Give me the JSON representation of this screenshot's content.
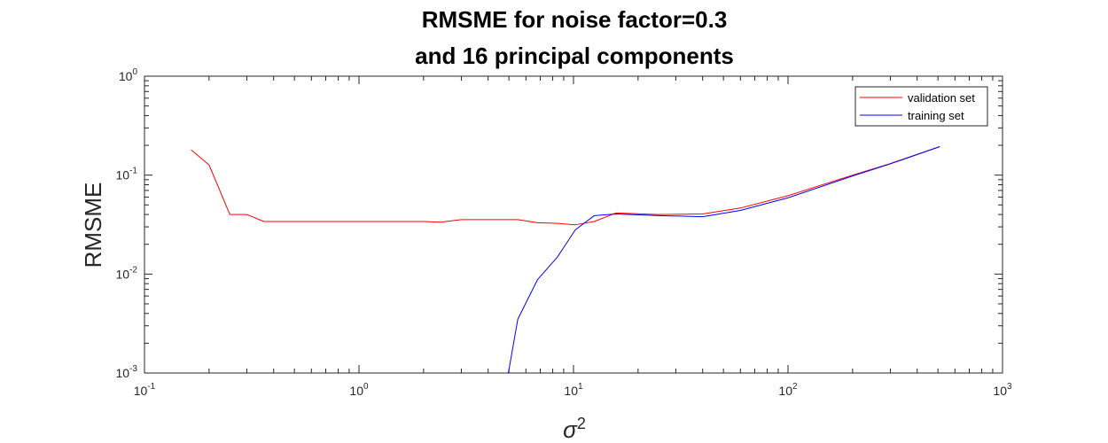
{
  "chart_data": {
    "type": "line",
    "title": "RMSME for noise factor=0.3",
    "subtitle": "and 16 principal components",
    "xlabel": "σ",
    "xlabel_sup": "2",
    "ylabel": "RMSME",
    "xscale": "log",
    "yscale": "log",
    "xlim": [
      0.1,
      1000
    ],
    "ylim": [
      0.001,
      1
    ],
    "x_ticks": [
      {
        "base": "10",
        "exp": "-1",
        "value": 0.1
      },
      {
        "base": "10",
        "exp": "0",
        "value": 1
      },
      {
        "base": "10",
        "exp": "1",
        "value": 10
      },
      {
        "base": "10",
        "exp": "2",
        "value": 100
      },
      {
        "base": "10",
        "exp": "3",
        "value": 1000
      }
    ],
    "y_ticks": [
      {
        "base": "10",
        "exp": "0",
        "value": 1
      },
      {
        "base": "10",
        "exp": "-1",
        "value": 0.1
      },
      {
        "base": "10",
        "exp": "-2",
        "value": 0.01
      },
      {
        "base": "10",
        "exp": "-3",
        "value": 0.001
      }
    ],
    "grid": false,
    "legend_position": "top-right",
    "series": [
      {
        "name": "validation set",
        "color": "#ff0000",
        "points": [
          [
            0.165,
            0.18
          ],
          [
            0.2,
            0.127
          ],
          [
            0.25,
            0.04
          ],
          [
            0.3,
            0.04
          ],
          [
            0.36,
            0.034
          ],
          [
            0.5,
            0.034
          ],
          [
            1.0,
            0.034
          ],
          [
            2.0,
            0.034
          ],
          [
            2.4,
            0.0335
          ],
          [
            3.0,
            0.0355
          ],
          [
            5.5,
            0.0355
          ],
          [
            6.8,
            0.033
          ],
          [
            8.5,
            0.0325
          ],
          [
            10.2,
            0.0315
          ],
          [
            12.5,
            0.034
          ],
          [
            15.8,
            0.0415
          ],
          [
            25,
            0.04
          ],
          [
            40,
            0.0405
          ],
          [
            60,
            0.0465
          ],
          [
            100,
            0.062
          ],
          [
            200,
            0.1
          ],
          [
            300,
            0.131
          ],
          [
            510,
            0.194
          ]
        ]
      },
      {
        "name": "training set",
        "color": "#0000ff",
        "points": [
          [
            4.97,
            0.001
          ],
          [
            5.5,
            0.0035
          ],
          [
            6.8,
            0.0088
          ],
          [
            8.4,
            0.0148
          ],
          [
            10.2,
            0.028
          ],
          [
            12.5,
            0.039
          ],
          [
            15.8,
            0.0405
          ],
          [
            25,
            0.039
          ],
          [
            40,
            0.038
          ],
          [
            60,
            0.044
          ],
          [
            100,
            0.059
          ],
          [
            200,
            0.098
          ],
          [
            300,
            0.13
          ],
          [
            510,
            0.194
          ]
        ]
      }
    ]
  }
}
